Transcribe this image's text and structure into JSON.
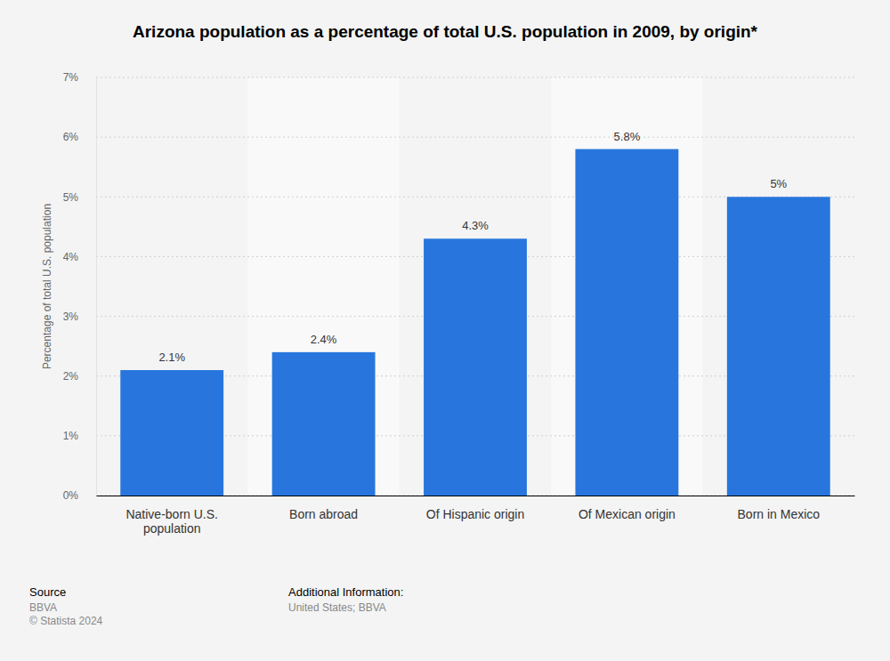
{
  "chart_data": {
    "type": "bar",
    "title": "Arizona population as a percentage of total U.S. population in 2009, by origin*",
    "y_label": "Percentage of total U.S. population",
    "categories": [
      "Native-born U.S. population",
      "Born abroad",
      "Of Hispanic origin",
      "Of Mexican origin",
      "Born in Mexico"
    ],
    "values": [
      2.1,
      2.4,
      4.3,
      5.8,
      5
    ],
    "value_labels": [
      "2.1%",
      "2.4%",
      "4.3%",
      "5.8%",
      "5%"
    ],
    "color": "#2876dd",
    "ylim": [
      0,
      7
    ],
    "yticks": [
      {
        "value": 0,
        "label": "0%"
      },
      {
        "value": 1,
        "label": "1%"
      },
      {
        "value": 2,
        "label": "2%"
      },
      {
        "value": 3,
        "label": "3%"
      },
      {
        "value": 4,
        "label": "4%"
      },
      {
        "value": 5,
        "label": "5%"
      },
      {
        "value": 6,
        "label": "6%"
      },
      {
        "value": 7,
        "label": "7%"
      }
    ],
    "grid": true,
    "data_labels": true
  },
  "footer": {
    "source_heading": "Source",
    "source": "BBVA",
    "copyright": "© Statista 2024",
    "info_heading": "Additional Information:",
    "info": "United States; BBVA"
  }
}
